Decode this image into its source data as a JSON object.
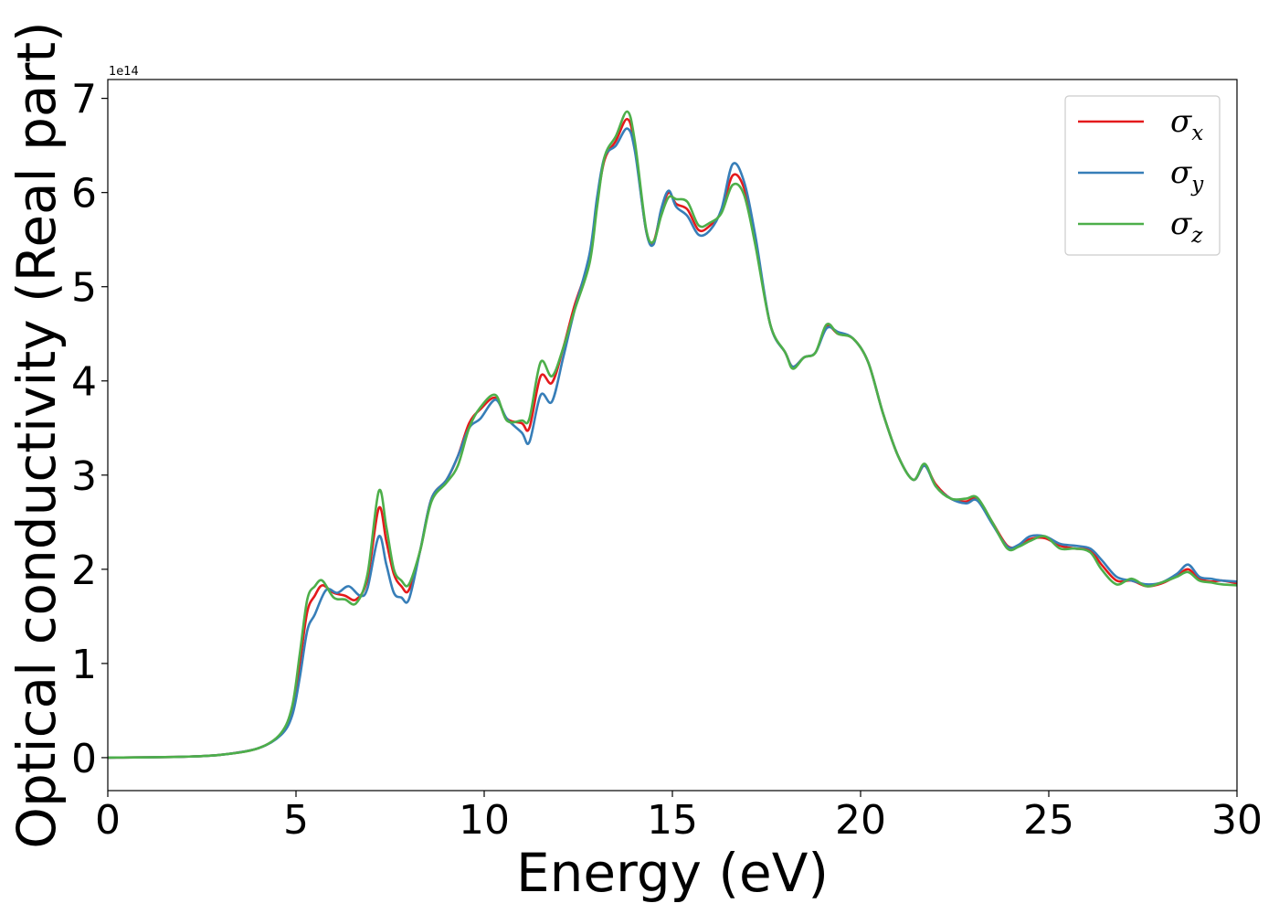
{
  "chart_data": {
    "type": "line",
    "xlabel": "Energy (eV)",
    "ylabel": "Optical conductivity (Real part)",
    "y_offset_text": "1e14",
    "xlim": [
      0,
      30
    ],
    "ylim": [
      -0.35,
      7.2
    ],
    "x_ticks": [
      0,
      5,
      10,
      15,
      20,
      25,
      30
    ],
    "y_ticks": [
      0,
      1,
      2,
      3,
      4,
      5,
      6,
      7
    ],
    "grid": false,
    "legend_position": "top-right",
    "series": [
      {
        "name": "σ",
        "subscript": "x",
        "color": "#e41a1c",
        "points": [
          [
            0,
            0
          ],
          [
            2,
            0.01
          ],
          [
            3,
            0.03
          ],
          [
            4,
            0.1
          ],
          [
            4.6,
            0.25
          ],
          [
            4.9,
            0.5
          ],
          [
            5.1,
            1.0
          ],
          [
            5.3,
            1.55
          ],
          [
            5.5,
            1.72
          ],
          [
            5.7,
            1.83
          ],
          [
            6.0,
            1.75
          ],
          [
            6.3,
            1.72
          ],
          [
            6.6,
            1.68
          ],
          [
            6.9,
            1.9
          ],
          [
            7.2,
            2.65
          ],
          [
            7.4,
            2.3
          ],
          [
            7.6,
            1.95
          ],
          [
            7.8,
            1.82
          ],
          [
            8.0,
            1.78
          ],
          [
            8.3,
            2.2
          ],
          [
            8.6,
            2.75
          ],
          [
            9.0,
            2.95
          ],
          [
            9.3,
            3.2
          ],
          [
            9.6,
            3.55
          ],
          [
            9.9,
            3.7
          ],
          [
            10.3,
            3.82
          ],
          [
            10.6,
            3.6
          ],
          [
            11.0,
            3.55
          ],
          [
            11.2,
            3.5
          ],
          [
            11.5,
            4.05
          ],
          [
            11.8,
            3.98
          ],
          [
            12.1,
            4.35
          ],
          [
            12.4,
            4.8
          ],
          [
            12.8,
            5.3
          ],
          [
            13.0,
            5.9
          ],
          [
            13.2,
            6.35
          ],
          [
            13.5,
            6.55
          ],
          [
            13.8,
            6.78
          ],
          [
            14.0,
            6.5
          ],
          [
            14.3,
            5.6
          ],
          [
            14.5,
            5.48
          ],
          [
            14.7,
            5.8
          ],
          [
            14.9,
            6.0
          ],
          [
            15.1,
            5.88
          ],
          [
            15.4,
            5.82
          ],
          [
            15.7,
            5.6
          ],
          [
            16.0,
            5.65
          ],
          [
            16.3,
            5.8
          ],
          [
            16.6,
            6.18
          ],
          [
            16.9,
            6.05
          ],
          [
            17.2,
            5.5
          ],
          [
            17.6,
            4.6
          ],
          [
            18.0,
            4.3
          ],
          [
            18.2,
            4.15
          ],
          [
            18.5,
            4.25
          ],
          [
            18.8,
            4.3
          ],
          [
            19.1,
            4.58
          ],
          [
            19.4,
            4.5
          ],
          [
            19.8,
            4.45
          ],
          [
            20.2,
            4.2
          ],
          [
            20.6,
            3.65
          ],
          [
            21.0,
            3.2
          ],
          [
            21.4,
            2.95
          ],
          [
            21.7,
            3.1
          ],
          [
            22.0,
            2.9
          ],
          [
            22.4,
            2.75
          ],
          [
            22.8,
            2.72
          ],
          [
            23.1,
            2.75
          ],
          [
            23.5,
            2.5
          ],
          [
            23.9,
            2.25
          ],
          [
            24.2,
            2.25
          ],
          [
            24.5,
            2.32
          ],
          [
            24.9,
            2.33
          ],
          [
            25.3,
            2.25
          ],
          [
            25.7,
            2.22
          ],
          [
            26.1,
            2.2
          ],
          [
            26.4,
            2.05
          ],
          [
            26.8,
            1.88
          ],
          [
            27.2,
            1.88
          ],
          [
            27.6,
            1.82
          ],
          [
            28.0,
            1.85
          ],
          [
            28.4,
            1.93
          ],
          [
            28.7,
            2.0
          ],
          [
            29.0,
            1.9
          ],
          [
            29.3,
            1.87
          ],
          [
            29.6,
            1.88
          ],
          [
            30,
            1.85
          ]
        ]
      },
      {
        "name": "σ",
        "subscript": "y",
        "color": "#377eb8",
        "points": [
          [
            0,
            0
          ],
          [
            2,
            0.01
          ],
          [
            3,
            0.03
          ],
          [
            4,
            0.1
          ],
          [
            4.6,
            0.24
          ],
          [
            4.9,
            0.45
          ],
          [
            5.1,
            0.85
          ],
          [
            5.3,
            1.35
          ],
          [
            5.5,
            1.52
          ],
          [
            5.8,
            1.78
          ],
          [
            6.1,
            1.75
          ],
          [
            6.4,
            1.82
          ],
          [
            6.7,
            1.72
          ],
          [
            6.9,
            1.8
          ],
          [
            7.2,
            2.35
          ],
          [
            7.4,
            2.05
          ],
          [
            7.6,
            1.75
          ],
          [
            7.8,
            1.7
          ],
          [
            8.0,
            1.68
          ],
          [
            8.3,
            2.2
          ],
          [
            8.6,
            2.75
          ],
          [
            9.0,
            2.95
          ],
          [
            9.3,
            3.2
          ],
          [
            9.6,
            3.5
          ],
          [
            9.9,
            3.6
          ],
          [
            10.3,
            3.8
          ],
          [
            10.6,
            3.6
          ],
          [
            11.0,
            3.45
          ],
          [
            11.2,
            3.35
          ],
          [
            11.5,
            3.85
          ],
          [
            11.8,
            3.78
          ],
          [
            12.1,
            4.25
          ],
          [
            12.4,
            4.75
          ],
          [
            12.8,
            5.35
          ],
          [
            13.0,
            5.95
          ],
          [
            13.2,
            6.38
          ],
          [
            13.5,
            6.5
          ],
          [
            13.8,
            6.68
          ],
          [
            14.0,
            6.45
          ],
          [
            14.3,
            5.6
          ],
          [
            14.5,
            5.45
          ],
          [
            14.7,
            5.82
          ],
          [
            14.9,
            6.02
          ],
          [
            15.1,
            5.85
          ],
          [
            15.4,
            5.75
          ],
          [
            15.7,
            5.55
          ],
          [
            16.0,
            5.6
          ],
          [
            16.3,
            5.82
          ],
          [
            16.6,
            6.3
          ],
          [
            16.9,
            6.12
          ],
          [
            17.2,
            5.55
          ],
          [
            17.6,
            4.6
          ],
          [
            18.0,
            4.3
          ],
          [
            18.2,
            4.15
          ],
          [
            18.5,
            4.25
          ],
          [
            18.8,
            4.3
          ],
          [
            19.1,
            4.56
          ],
          [
            19.4,
            4.52
          ],
          [
            19.8,
            4.45
          ],
          [
            20.2,
            4.2
          ],
          [
            20.6,
            3.65
          ],
          [
            21.0,
            3.2
          ],
          [
            21.4,
            2.95
          ],
          [
            21.7,
            3.1
          ],
          [
            22.0,
            2.88
          ],
          [
            22.4,
            2.75
          ],
          [
            22.8,
            2.7
          ],
          [
            23.1,
            2.73
          ],
          [
            23.5,
            2.48
          ],
          [
            23.9,
            2.24
          ],
          [
            24.2,
            2.26
          ],
          [
            24.5,
            2.35
          ],
          [
            24.9,
            2.35
          ],
          [
            25.3,
            2.27
          ],
          [
            25.7,
            2.25
          ],
          [
            26.1,
            2.22
          ],
          [
            26.4,
            2.1
          ],
          [
            26.8,
            1.92
          ],
          [
            27.2,
            1.88
          ],
          [
            27.6,
            1.84
          ],
          [
            28.0,
            1.86
          ],
          [
            28.4,
            1.95
          ],
          [
            28.7,
            2.05
          ],
          [
            29.0,
            1.92
          ],
          [
            29.3,
            1.9
          ],
          [
            29.6,
            1.88
          ],
          [
            30,
            1.87
          ]
        ]
      },
      {
        "name": "σ",
        "subscript": "z",
        "color": "#4daf4a",
        "points": [
          [
            0,
            0
          ],
          [
            2,
            0.01
          ],
          [
            3,
            0.03
          ],
          [
            4,
            0.1
          ],
          [
            4.6,
            0.26
          ],
          [
            4.9,
            0.55
          ],
          [
            5.1,
            1.1
          ],
          [
            5.3,
            1.68
          ],
          [
            5.5,
            1.82
          ],
          [
            5.7,
            1.88
          ],
          [
            6.0,
            1.7
          ],
          [
            6.3,
            1.68
          ],
          [
            6.6,
            1.64
          ],
          [
            6.9,
            1.95
          ],
          [
            7.2,
            2.83
          ],
          [
            7.4,
            2.45
          ],
          [
            7.6,
            2.0
          ],
          [
            7.8,
            1.88
          ],
          [
            8.0,
            1.84
          ],
          [
            8.3,
            2.2
          ],
          [
            8.6,
            2.72
          ],
          [
            9.0,
            2.92
          ],
          [
            9.3,
            3.1
          ],
          [
            9.6,
            3.5
          ],
          [
            9.9,
            3.72
          ],
          [
            10.3,
            3.85
          ],
          [
            10.6,
            3.58
          ],
          [
            11.0,
            3.58
          ],
          [
            11.2,
            3.6
          ],
          [
            11.5,
            4.2
          ],
          [
            11.8,
            4.05
          ],
          [
            12.1,
            4.35
          ],
          [
            12.4,
            4.75
          ],
          [
            12.8,
            5.25
          ],
          [
            13.0,
            5.85
          ],
          [
            13.2,
            6.38
          ],
          [
            13.5,
            6.6
          ],
          [
            13.8,
            6.86
          ],
          [
            14.0,
            6.55
          ],
          [
            14.3,
            5.62
          ],
          [
            14.5,
            5.48
          ],
          [
            14.7,
            5.75
          ],
          [
            14.9,
            5.95
          ],
          [
            15.1,
            5.93
          ],
          [
            15.4,
            5.9
          ],
          [
            15.7,
            5.65
          ],
          [
            16.0,
            5.68
          ],
          [
            16.3,
            5.78
          ],
          [
            16.6,
            6.08
          ],
          [
            16.9,
            5.98
          ],
          [
            17.2,
            5.45
          ],
          [
            17.6,
            4.6
          ],
          [
            18.0,
            4.3
          ],
          [
            18.2,
            4.13
          ],
          [
            18.5,
            4.25
          ],
          [
            18.8,
            4.3
          ],
          [
            19.1,
            4.6
          ],
          [
            19.4,
            4.5
          ],
          [
            19.8,
            4.45
          ],
          [
            20.2,
            4.2
          ],
          [
            20.6,
            3.65
          ],
          [
            21.0,
            3.2
          ],
          [
            21.4,
            2.95
          ],
          [
            21.7,
            3.12
          ],
          [
            22.0,
            2.88
          ],
          [
            22.4,
            2.75
          ],
          [
            22.8,
            2.75
          ],
          [
            23.1,
            2.76
          ],
          [
            23.5,
            2.5
          ],
          [
            23.9,
            2.22
          ],
          [
            24.2,
            2.24
          ],
          [
            24.5,
            2.3
          ],
          [
            24.9,
            2.35
          ],
          [
            25.3,
            2.22
          ],
          [
            25.7,
            2.22
          ],
          [
            26.1,
            2.18
          ],
          [
            26.4,
            2.0
          ],
          [
            26.8,
            1.84
          ],
          [
            27.2,
            1.9
          ],
          [
            27.6,
            1.82
          ],
          [
            28.0,
            1.86
          ],
          [
            28.4,
            1.92
          ],
          [
            28.7,
            1.97
          ],
          [
            29.0,
            1.88
          ],
          [
            29.3,
            1.86
          ],
          [
            29.6,
            1.84
          ],
          [
            30,
            1.83
          ]
        ]
      }
    ]
  }
}
